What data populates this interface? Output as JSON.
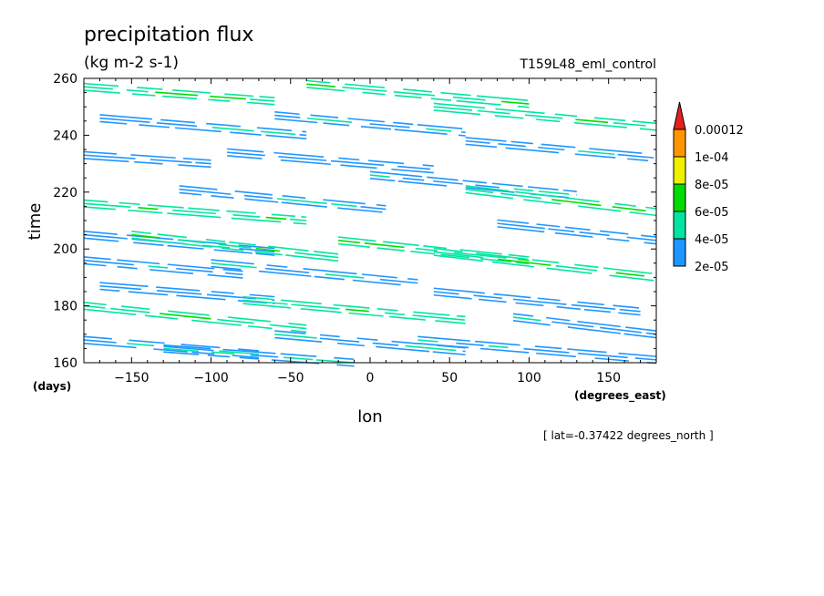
{
  "chart_data": {
    "type": "heatmap",
    "title": "precipitation flux",
    "units": "(kg m-2 s-1)",
    "experiment": "T159L48_eml_control",
    "xlabel": "lon",
    "xunits": "(degrees_east)",
    "ylabel": "time",
    "yunits": "(days)",
    "subset_note": "[ lat=-0.37422 degrees_north ]",
    "xlim": [
      -180,
      180
    ],
    "ylim": [
      160,
      260
    ],
    "x_ticks": [
      -150,
      -100,
      -50,
      0,
      50,
      100,
      150
    ],
    "y_ticks": [
      160,
      180,
      200,
      220,
      240,
      260
    ],
    "levels": [
      "2e-05",
      "4e-05",
      "6e-05",
      "8e-05",
      "1e-04",
      "0.00012"
    ],
    "level_values": [
      2e-05,
      4e-05,
      6e-05,
      8e-05,
      0.0001,
      0.00012
    ],
    "colors": [
      "#1e96ff",
      "#00e6a0",
      "#00dc00",
      "#f0f000",
      "#ff9600",
      "#e61e1e"
    ],
    "note": "Filled contours: many thin eastward-slanted bands (values mostly 2e-05 to 6e-05) across all longitudes; band slope ~ -5 days per 100 degrees lon.",
    "bands": [
      {
        "lon0": -180,
        "lon1": -60,
        "t0": 257,
        "t1": 252,
        "level": 1
      },
      {
        "lon0": -170,
        "lon1": -40,
        "t0": 246,
        "t1": 240,
        "level": 0
      },
      {
        "lon0": -180,
        "lon1": -100,
        "t0": 233,
        "t1": 230,
        "level": 0
      },
      {
        "lon0": -180,
        "lon1": -40,
        "t0": 216,
        "t1": 210,
        "level": 1
      },
      {
        "lon0": -120,
        "lon1": 10,
        "t0": 221,
        "t1": 214,
        "level": 0
      },
      {
        "lon0": -90,
        "lon1": 40,
        "t0": 234,
        "t1": 228,
        "level": 0
      },
      {
        "lon0": -60,
        "lon1": 60,
        "t0": 247,
        "t1": 241,
        "level": 0
      },
      {
        "lon0": -40,
        "lon1": 100,
        "t0": 258,
        "t1": 251,
        "level": 1
      },
      {
        "lon0": 40,
        "lon1": 180,
        "t0": 250,
        "t1": 243,
        "level": 1
      },
      {
        "lon0": 60,
        "lon1": 180,
        "t0": 238,
        "t1": 232,
        "level": 0
      },
      {
        "lon0": 0,
        "lon1": 130,
        "t0": 226,
        "t1": 219,
        "level": 0
      },
      {
        "lon0": 60,
        "lon1": 180,
        "t0": 221,
        "t1": 213,
        "level": 1
      },
      {
        "lon0": -180,
        "lon1": -60,
        "t0": 205,
        "t1": 199,
        "level": 0
      },
      {
        "lon0": -150,
        "lon1": -20,
        "t0": 205,
        "t1": 197,
        "level": 1
      },
      {
        "lon0": -180,
        "lon1": -80,
        "t0": 196,
        "t1": 191,
        "level": 0
      },
      {
        "lon0": -100,
        "lon1": 30,
        "t0": 195,
        "t1": 188,
        "level": 0
      },
      {
        "lon0": -20,
        "lon1": 100,
        "t0": 203,
        "t1": 196,
        "level": 1
      },
      {
        "lon0": 40,
        "lon1": 180,
        "t0": 199,
        "t1": 190,
        "level": 1
      },
      {
        "lon0": 80,
        "lon1": 180,
        "t0": 209,
        "t1": 203,
        "level": 0
      },
      {
        "lon0": -180,
        "lon1": -40,
        "t0": 180,
        "t1": 172,
        "level": 1
      },
      {
        "lon0": -170,
        "lon1": -60,
        "t0": 187,
        "t1": 182,
        "level": 0
      },
      {
        "lon0": -80,
        "lon1": 60,
        "t0": 182,
        "t1": 175,
        "level": 1
      },
      {
        "lon0": 40,
        "lon1": 170,
        "t0": 185,
        "t1": 178,
        "level": 0
      },
      {
        "lon0": 90,
        "lon1": 180,
        "t0": 176,
        "t1": 170,
        "level": 0
      },
      {
        "lon0": -180,
        "lon1": -70,
        "t0": 168,
        "t1": 163,
        "level": 0
      },
      {
        "lon0": -60,
        "lon1": 60,
        "t0": 170,
        "t1": 164,
        "level": 0
      },
      {
        "lon0": 30,
        "lon1": 180,
        "t0": 168,
        "t1": 161,
        "level": 0
      },
      {
        "lon0": -130,
        "lon1": -10,
        "t0": 165,
        "t1": 160,
        "level": 0
      }
    ]
  }
}
